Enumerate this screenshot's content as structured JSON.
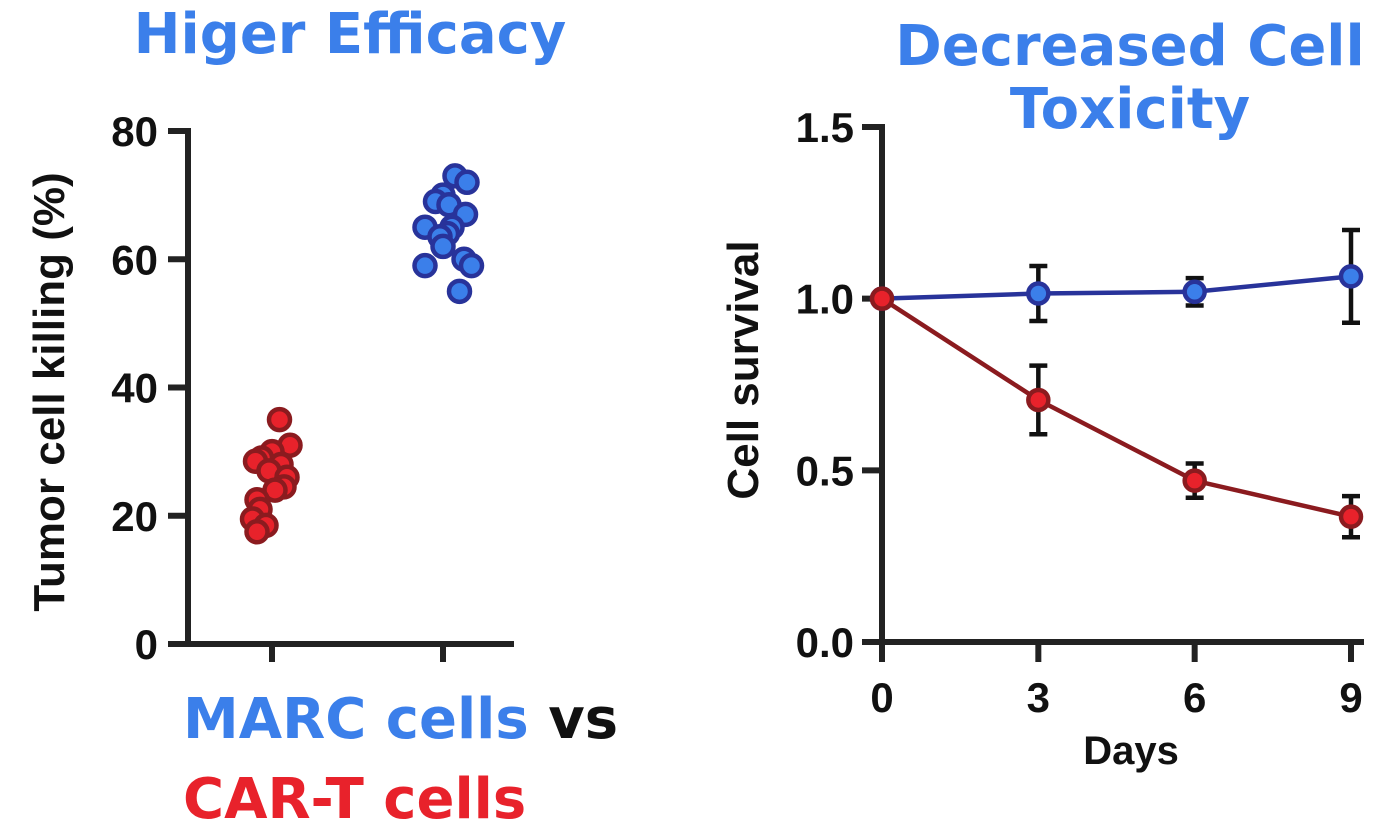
{
  "colors": {
    "blue_fill": "#3b7fea",
    "blue_stroke": "#28339a",
    "red_fill": "#e8222b",
    "red_stroke": "#8b1b1f",
    "axis": "#222222",
    "title_blue": "#3b7fea"
  },
  "legend": {
    "marc": "MARC cells",
    "vs": "vs",
    "cart": "CAR-T cells"
  },
  "chart_data": [
    {
      "type": "scatter",
      "title": "Higer Efficacy",
      "ylabel": "Tumor cell killing (%)",
      "xlabel": "",
      "ylim": [
        0,
        80
      ],
      "yticks": [
        0,
        20,
        40,
        60,
        80
      ],
      "ytick_labels": [
        "0",
        "20",
        "40",
        "60",
        "80"
      ],
      "categories": [
        "CAR-T cells",
        "MARC cells"
      ],
      "series": [
        {
          "name": "CAR-T cells",
          "color": "red",
          "values": [
            35,
            31,
            30,
            29,
            28.5,
            28,
            27,
            26,
            24.5,
            24,
            22.5,
            21,
            19.5,
            18.5,
            17.5
          ],
          "jitter": [
            0.05,
            0.12,
            0.0,
            -0.07,
            -0.11,
            0.06,
            -0.02,
            0.1,
            0.08,
            0.02,
            -0.1,
            -0.08,
            -0.13,
            -0.04,
            -0.1
          ]
        },
        {
          "name": "MARC cells",
          "color": "blue",
          "values": [
            73,
            72,
            70,
            69,
            68.5,
            67,
            65,
            65,
            64,
            63.5,
            62,
            60,
            59,
            59,
            55
          ],
          "jitter": [
            0.08,
            0.16,
            0.0,
            -0.05,
            0.04,
            0.15,
            -0.12,
            0.06,
            0.03,
            -0.02,
            0.0,
            0.14,
            0.19,
            -0.12,
            0.11
          ]
        }
      ]
    },
    {
      "type": "line",
      "title_lines": [
        "Decreased Cell",
        "Toxicity"
      ],
      "xlabel": "Days",
      "ylabel": "Cell survival",
      "xlim": [
        0,
        9
      ],
      "ylim": [
        0,
        1.5
      ],
      "x": [
        0,
        3,
        6,
        9
      ],
      "xtick_labels": [
        "0",
        "3",
        "6",
        "9"
      ],
      "yticks": [
        0,
        0.5,
        1.0,
        1.5
      ],
      "ytick_labels": [
        "0.0",
        "0.5",
        "1.0",
        "1.5"
      ],
      "series": [
        {
          "name": "MARC cells",
          "color": "blue",
          "values": [
            1.0,
            1.015,
            1.02,
            1.065
          ],
          "errors": [
            0,
            0.08,
            0.04,
            0.135
          ]
        },
        {
          "name": "CAR-T cells",
          "color": "red",
          "values": [
            1.0,
            0.705,
            0.47,
            0.365
          ],
          "errors": [
            0,
            0.1,
            0.05,
            0.06
          ]
        }
      ]
    }
  ]
}
